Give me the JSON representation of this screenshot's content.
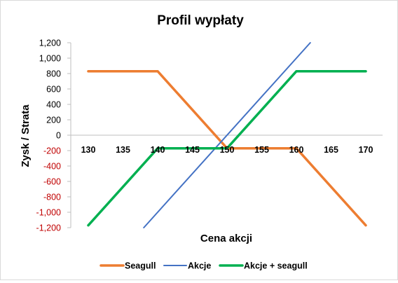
{
  "chart_data": {
    "type": "line",
    "title": "Profil wypłaty",
    "xlabel": "Cena akcji",
    "ylabel": "Zysk / Strata",
    "x": [
      130,
      135,
      140,
      145,
      150,
      155,
      160,
      165,
      170
    ],
    "x_tick_labels": [
      "130",
      "135",
      "140",
      "145",
      "150",
      "155",
      "160",
      "165",
      "170"
    ],
    "xlim": [
      130,
      170
    ],
    "ylim": [
      -1200,
      1200
    ],
    "y_ticks": [
      1200,
      1000,
      800,
      600,
      400,
      200,
      0,
      -200,
      -400,
      -600,
      -800,
      -1000,
      -1200
    ],
    "y_tick_labels": [
      "1,200",
      "1,000",
      "800",
      "600",
      "400",
      "200",
      "0",
      "-200",
      "-400",
      "-600",
      "-800",
      "-1,000",
      "-1,200"
    ],
    "negative_tick_color": "#c00000",
    "positive_tick_color": "#000000",
    "grid": false,
    "legend_position": "bottom",
    "series": [
      {
        "name": "Seagull",
        "color": "#ed7d31",
        "points": [
          [
            130,
            830
          ],
          [
            140,
            830
          ],
          [
            150,
            -170
          ],
          [
            160,
            -170
          ],
          [
            170,
            -1170
          ]
        ]
      },
      {
        "name": "Akcje",
        "color": "#4472c4",
        "points": [
          [
            138,
            -1200
          ],
          [
            162,
            1200
          ]
        ]
      },
      {
        "name": "Akcje + seagull",
        "color": "#00b050",
        "points": [
          [
            130,
            -1170
          ],
          [
            140,
            -170
          ],
          [
            150,
            -170
          ],
          [
            160,
            830
          ],
          [
            170,
            830
          ]
        ]
      }
    ]
  }
}
